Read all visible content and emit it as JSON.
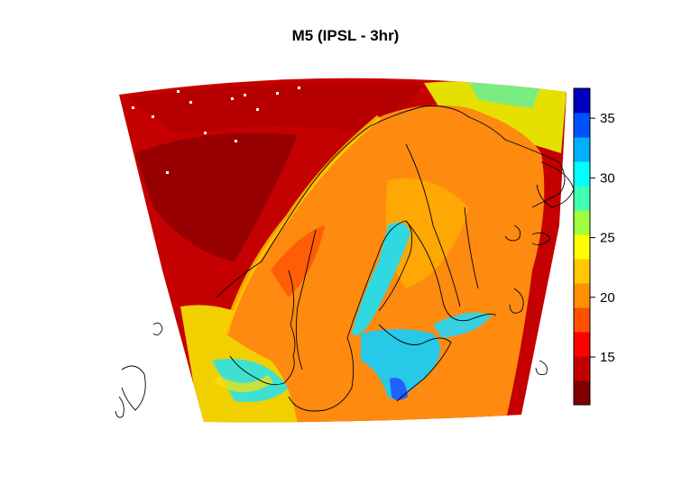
{
  "title": "M5 (IPSL - 3hr)",
  "colorbar": {
    "min": 11,
    "max": 37.5,
    "ticks": [
      "15",
      "20",
      "25",
      "30",
      "35"
    ],
    "tick_values": [
      15,
      20,
      25,
      30,
      35
    ],
    "colors": [
      "#800000",
      "#c00000",
      "#ff0000",
      "#ff5000",
      "#ff9000",
      "#ffc800",
      "#ffff00",
      "#a0ff40",
      "#40ffb0",
      "#00ffff",
      "#00b0ff",
      "#0050ff",
      "#0000c0"
    ]
  },
  "map": {
    "region": "Fennoscandia",
    "ocean_color": "#c40000",
    "land_color": "#ff8a10",
    "coast_color": "#3fd2d8"
  }
}
